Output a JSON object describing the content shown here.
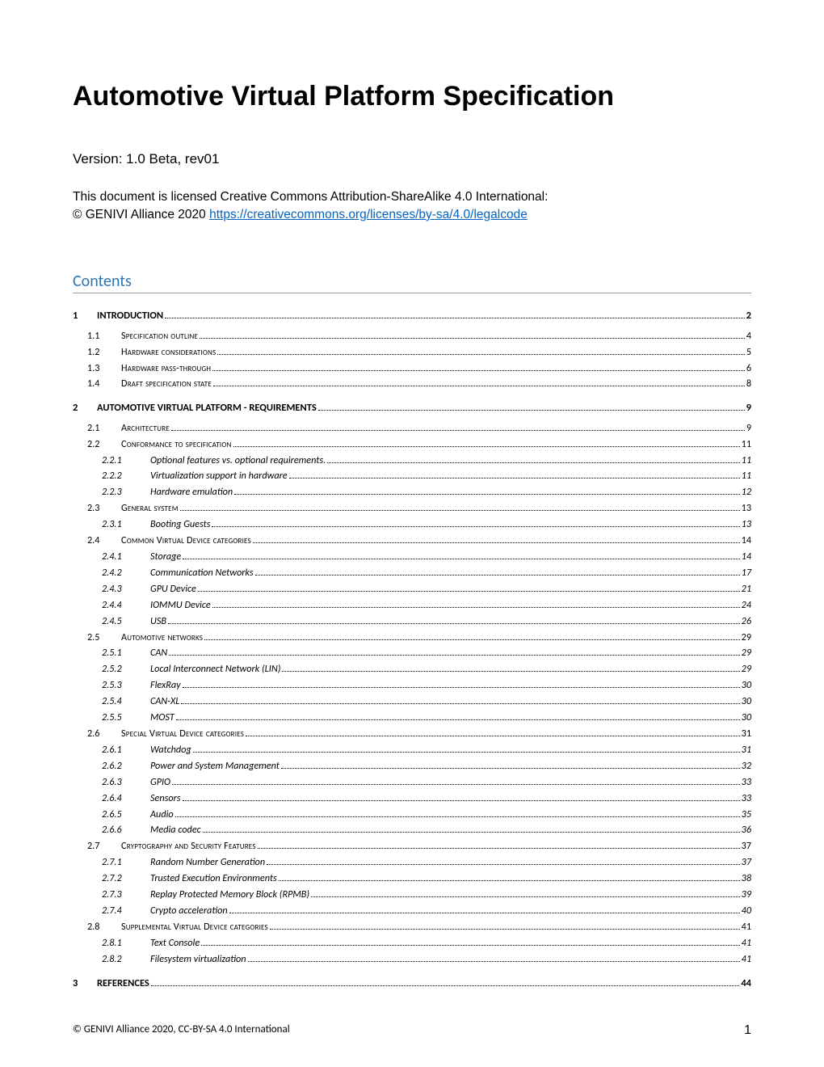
{
  "title": "Automotive Virtual Platform Specification",
  "version": "Version: 1.0 Beta, rev01",
  "license_line1": "This document is licensed Creative Commons Attribution-ShareAlike 4.0 International:",
  "license_line2_prefix": "© GENIVI Alliance 2020 ",
  "license_link": "https://creativecommons.org/licenses/by-sa/4.0/legalcode",
  "contents_heading": "Contents",
  "footer_left": "© GENIVI Alliance 2020, CC-BY-SA 4.0 International",
  "footer_page": "1",
  "toc": [
    {
      "level": 1,
      "num": "1",
      "label": "Introduction",
      "page": "2"
    },
    {
      "level": 2,
      "num": "1.1",
      "label": "Specification outline",
      "page": "4"
    },
    {
      "level": 2,
      "num": "1.2",
      "label": "Hardware considerations",
      "page": "5"
    },
    {
      "level": 2,
      "num": "1.3",
      "label": "Hardware pass-through",
      "page": "6"
    },
    {
      "level": 2,
      "num": "1.4",
      "label": "Draft specification state",
      "page": "8"
    },
    {
      "level": 1,
      "num": "2",
      "label": "Automotive Virtual Platform - Requirements",
      "page": "9"
    },
    {
      "level": 2,
      "num": "2.1",
      "label": "Architecture",
      "page": "9"
    },
    {
      "level": 2,
      "num": "2.2",
      "label": "Conformance to specification",
      "page": "11"
    },
    {
      "level": 3,
      "num": "2.2.1",
      "label": "Optional features vs. optional requirements.",
      "page": "11"
    },
    {
      "level": 3,
      "num": "2.2.2",
      "label": "Virtualization support in hardware",
      "page": "11"
    },
    {
      "level": 3,
      "num": "2.2.3",
      "label": "Hardware emulation",
      "page": "12"
    },
    {
      "level": 2,
      "num": "2.3",
      "label": "General system",
      "page": "13"
    },
    {
      "level": 3,
      "num": "2.3.1",
      "label": "Booting Guests",
      "page": "13"
    },
    {
      "level": 2,
      "num": "2.4",
      "label": "Common Virtual Device categories",
      "page": "14"
    },
    {
      "level": 3,
      "num": "2.4.1",
      "label": "Storage",
      "page": "14"
    },
    {
      "level": 3,
      "num": "2.4.2",
      "label": "Communication Networks",
      "page": "17"
    },
    {
      "level": 3,
      "num": "2.4.3",
      "label": "GPU Device",
      "page": "21"
    },
    {
      "level": 3,
      "num": "2.4.4",
      "label": "IOMMU Device",
      "page": "24"
    },
    {
      "level": 3,
      "num": "2.4.5",
      "label": "USB",
      "page": "26"
    },
    {
      "level": 2,
      "num": "2.5",
      "label": "Automotive networks",
      "page": "29"
    },
    {
      "level": 3,
      "num": "2.5.1",
      "label": "CAN",
      "page": "29"
    },
    {
      "level": 3,
      "num": "2.5.2",
      "label": "Local Interconnect Network (LIN)",
      "page": "29"
    },
    {
      "level": 3,
      "num": "2.5.3",
      "label": "FlexRay",
      "page": "30"
    },
    {
      "level": 3,
      "num": "2.5.4",
      "label": "CAN-XL",
      "page": "30"
    },
    {
      "level": 3,
      "num": "2.5.5",
      "label": "MOST",
      "page": "30"
    },
    {
      "level": 2,
      "num": "2.6",
      "label": "Special Virtual Device categories",
      "page": "31"
    },
    {
      "level": 3,
      "num": "2.6.1",
      "label": "Watchdog",
      "page": "31"
    },
    {
      "level": 3,
      "num": "2.6.2",
      "label": "Power and System Management",
      "page": "32"
    },
    {
      "level": 3,
      "num": "2.6.3",
      "label": "GPIO",
      "page": "33"
    },
    {
      "level": 3,
      "num": "2.6.4",
      "label": "Sensors",
      "page": "33"
    },
    {
      "level": 3,
      "num": "2.6.5",
      "label": "Audio",
      "page": "35"
    },
    {
      "level": 3,
      "num": "2.6.6",
      "label": "Media codec",
      "page": "36"
    },
    {
      "level": 2,
      "num": "2.7",
      "label": "Cryptography and Security Features",
      "page": "37"
    },
    {
      "level": 3,
      "num": "2.7.1",
      "label": "Random Number Generation",
      "page": "37"
    },
    {
      "level": 3,
      "num": "2.7.2",
      "label": "Trusted Execution Environments",
      "page": "38"
    },
    {
      "level": 3,
      "num": "2.7.3",
      "label": "Replay Protected Memory Block (RPMB)",
      "page": "39"
    },
    {
      "level": 3,
      "num": "2.7.4",
      "label": "Crypto acceleration",
      "page": "40"
    },
    {
      "level": 2,
      "num": "2.8",
      "label": "Supplemental Virtual Device categories",
      "page": "41"
    },
    {
      "level": 3,
      "num": "2.8.1",
      "label": "Text Console",
      "page": "41"
    },
    {
      "level": 3,
      "num": "2.8.2",
      "label": "Filesystem virtualization",
      "page": "41"
    },
    {
      "level": 1,
      "num": "3",
      "label": "References",
      "page": "44"
    }
  ]
}
